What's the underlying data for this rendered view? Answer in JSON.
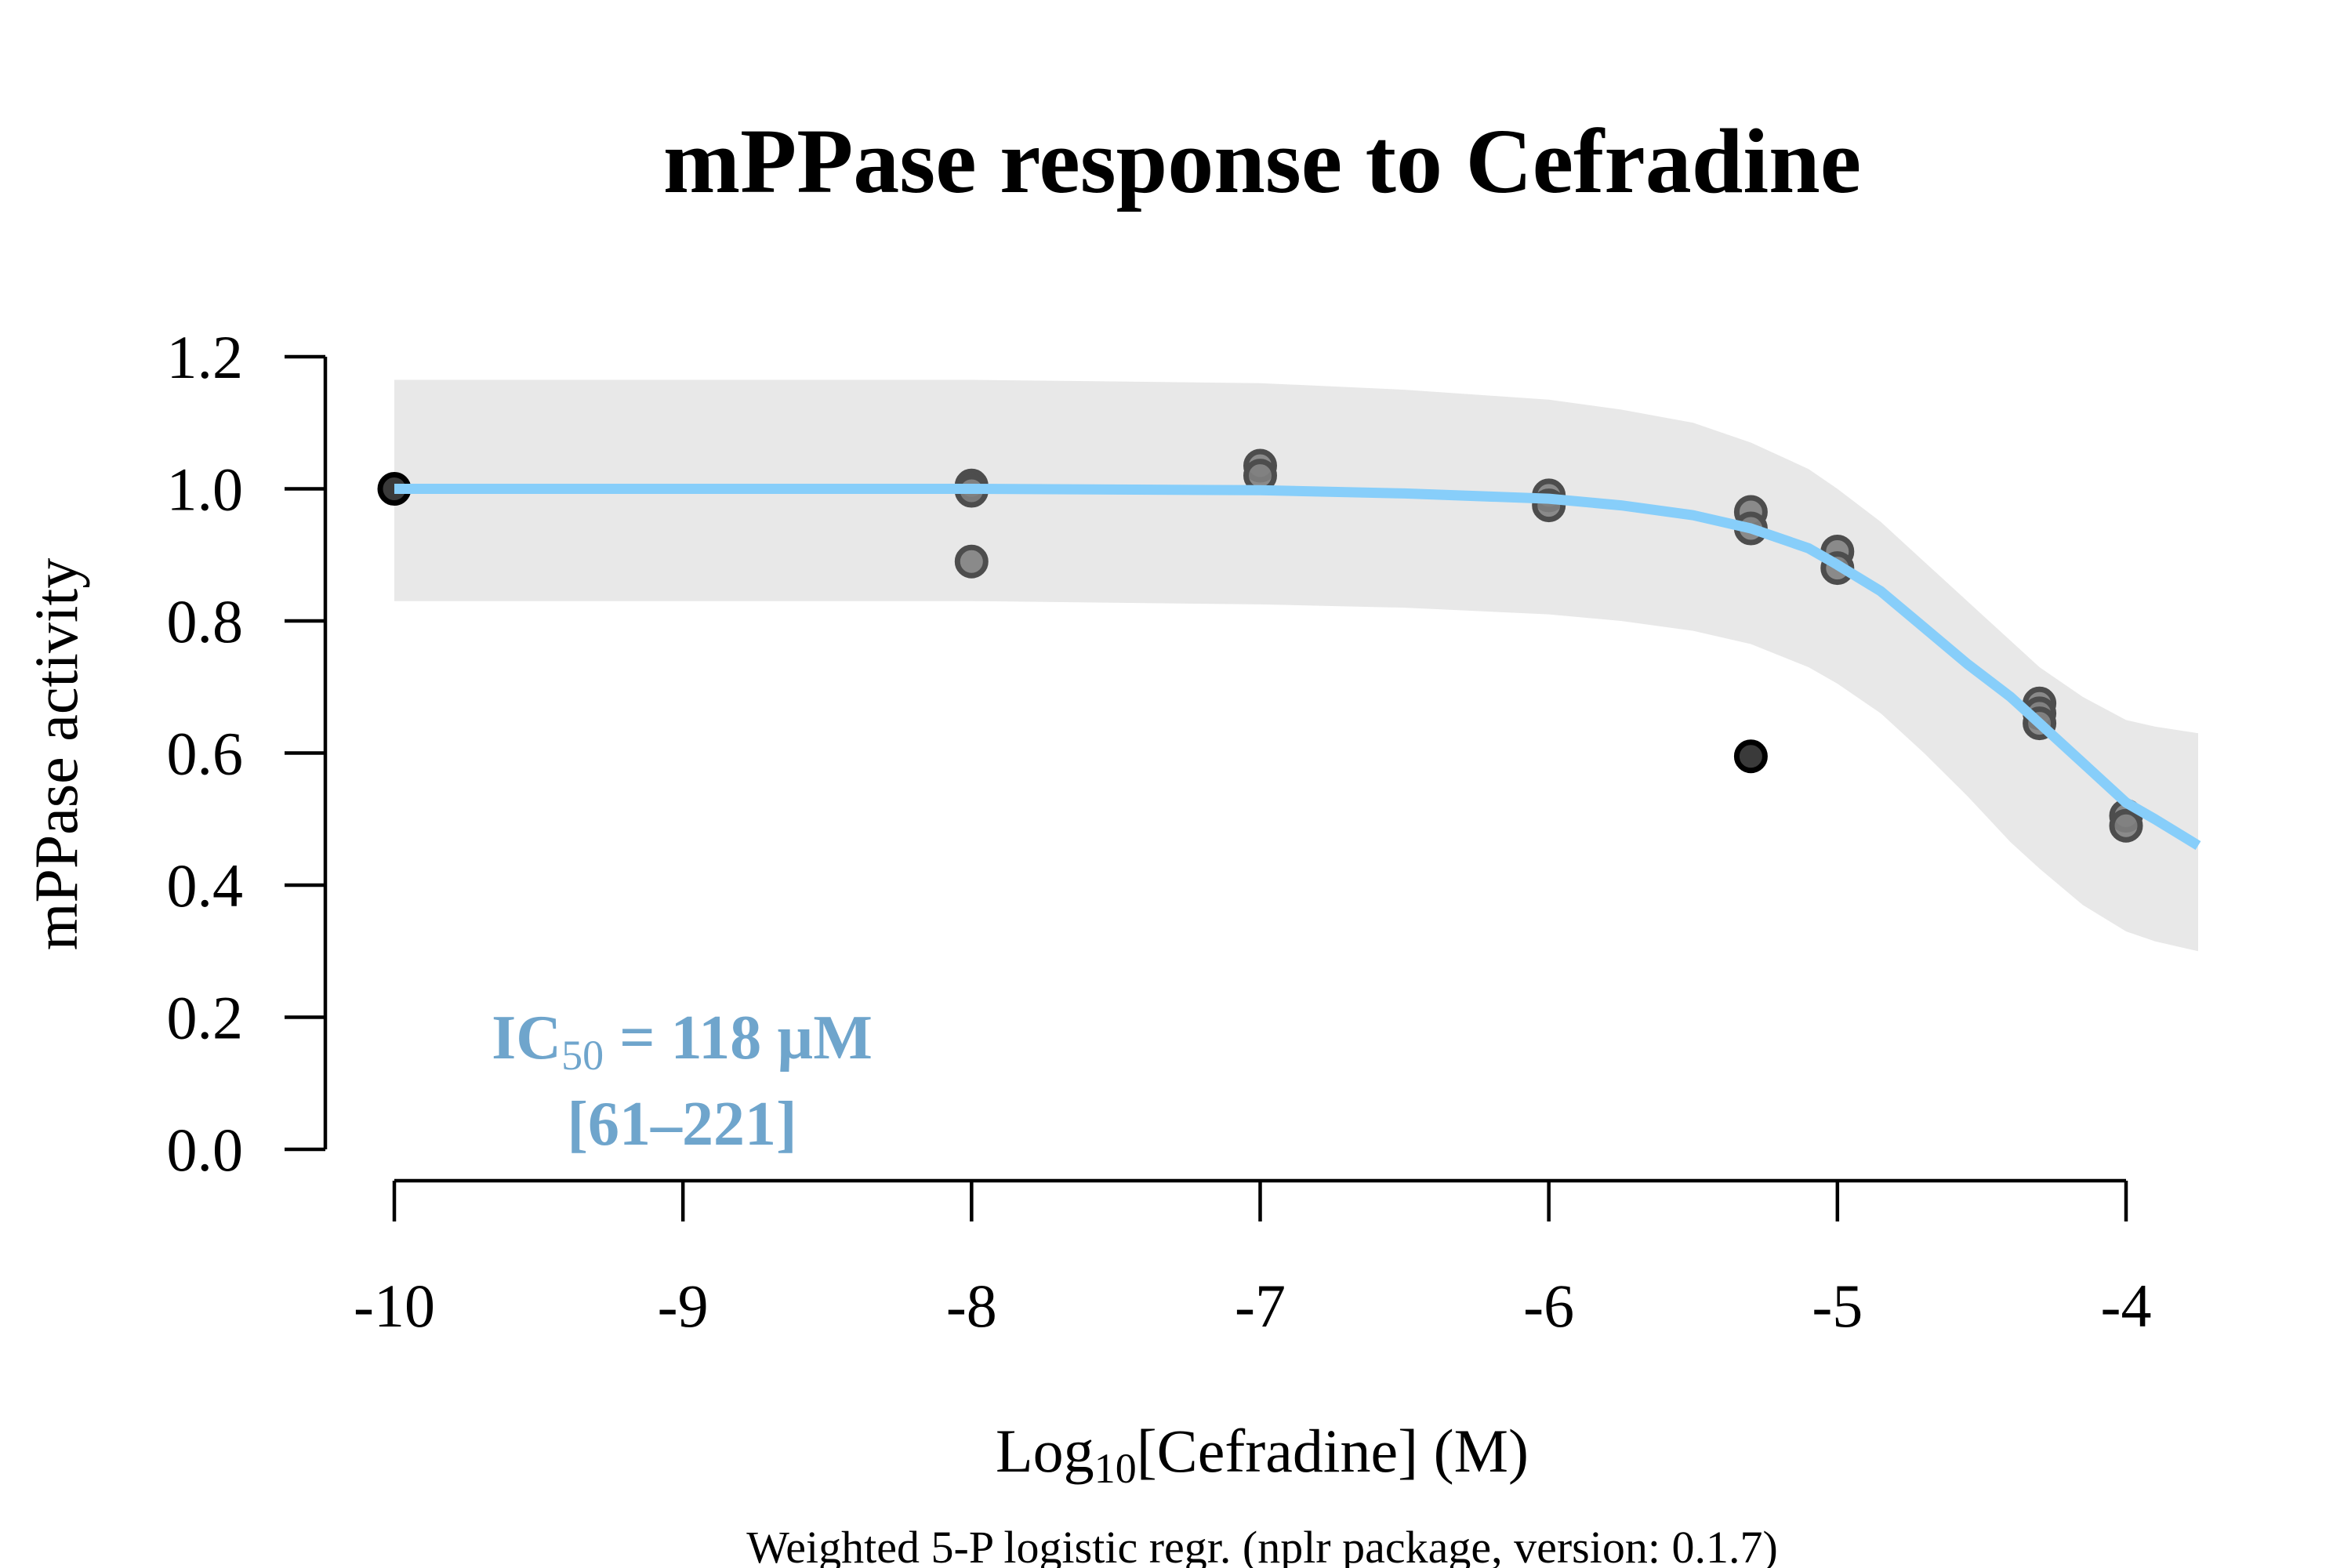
{
  "chart_data": {
    "type": "scatter",
    "title": "mPPase response to Cefradine",
    "xlabel": {
      "prefix": "Log",
      "subscript": "10",
      "suffix": "[Cefradine] (M)"
    },
    "ylabel": "mPPase activity",
    "footnote": "Weighted 5-P logistic regr. (nplr package, version: 0.1.7)",
    "xlim": [
      -10,
      -3.75
    ],
    "ylim": [
      0,
      1.2
    ],
    "x_ticks": [
      -10,
      -9,
      -8,
      -7,
      -6,
      -5,
      -4
    ],
    "x_tick_labels": [
      "-10",
      "-9",
      "-8",
      "-7",
      "-6",
      "-5",
      "-4"
    ],
    "y_ticks": [
      0,
      0.2,
      0.4,
      0.6,
      0.8,
      1.0,
      1.2
    ],
    "y_tick_labels": [
      "0.0",
      "0.2",
      "0.4",
      "0.6",
      "0.8",
      "1.0",
      "1.2"
    ],
    "grid": false,
    "points": [
      {
        "x": -10,
        "y": 1.0,
        "outlier": true
      },
      {
        "x": -8,
        "y": 1.005
      },
      {
        "x": -8,
        "y": 0.997
      },
      {
        "x": -8,
        "y": 0.89
      },
      {
        "x": -7,
        "y": 1.035
      },
      {
        "x": -7,
        "y": 1.02
      },
      {
        "x": -6,
        "y": 0.99
      },
      {
        "x": -6,
        "y": 0.975
      },
      {
        "x": -5.3,
        "y": 0.965
      },
      {
        "x": -5.3,
        "y": 0.94
      },
      {
        "x": -5.3,
        "y": 0.595,
        "outlier": true
      },
      {
        "x": -5,
        "y": 0.905
      },
      {
        "x": -5,
        "y": 0.88
      },
      {
        "x": -4.3,
        "y": 0.675
      },
      {
        "x": -4.3,
        "y": 0.66
      },
      {
        "x": -4.3,
        "y": 0.645
      },
      {
        "x": -4,
        "y": 0.505
      },
      {
        "x": -4,
        "y": 0.49
      }
    ],
    "fit_curve": {
      "x": [
        -10,
        -9,
        -8,
        -7,
        -6.5,
        -6,
        -5.75,
        -5.5,
        -5.3,
        -5.1,
        -5,
        -4.85,
        -4.7,
        -4.55,
        -4.4,
        -4.3,
        -4.15,
        -4,
        -3.9,
        -3.75
      ],
      "y": [
        1.0,
        1.0,
        1.0,
        0.998,
        0.993,
        0.985,
        0.975,
        0.96,
        0.94,
        0.91,
        0.885,
        0.845,
        0.79,
        0.735,
        0.685,
        0.645,
        0.585,
        0.525,
        0.5,
        0.46
      ]
    },
    "confidence_band": {
      "x": [
        -10,
        -9,
        -8,
        -7,
        -6.5,
        -6,
        -5.75,
        -5.5,
        -5.3,
        -5.1,
        -5,
        -4.85,
        -4.7,
        -4.55,
        -4.4,
        -4.3,
        -4.15,
        -4,
        -3.9,
        -3.75
      ],
      "upper": [
        1.165,
        1.165,
        1.165,
        1.16,
        1.15,
        1.135,
        1.12,
        1.1,
        1.07,
        1.03,
        1.0,
        0.95,
        0.89,
        0.83,
        0.77,
        0.73,
        0.685,
        0.65,
        0.64,
        0.63
      ],
      "lower": [
        0.83,
        0.83,
        0.83,
        0.825,
        0.82,
        0.81,
        0.8,
        0.785,
        0.765,
        0.73,
        0.705,
        0.66,
        0.6,
        0.535,
        0.465,
        0.425,
        0.37,
        0.33,
        0.315,
        0.3
      ]
    },
    "annotation": {
      "line1_prefix": "IC",
      "line1_subscript": "50",
      "line1_suffix": " = 118 µM",
      "line2": "[61–221]"
    },
    "colors": {
      "fit_line": "#87CEFA",
      "annotation": "#6FA5CC",
      "band": "#E8E8E8",
      "point_fill": "#7F7F7F",
      "point_stroke": "#4D4D4D",
      "outlier_fill": "#3A3A3A",
      "outlier_stroke": "#000000",
      "axis": "#000000"
    }
  }
}
